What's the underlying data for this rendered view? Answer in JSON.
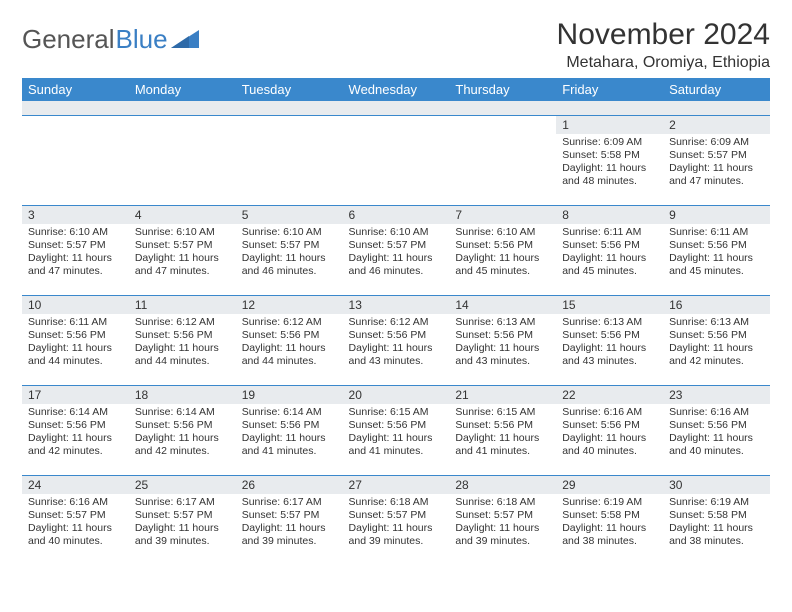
{
  "logo": {
    "text1": "General",
    "text2": "Blue"
  },
  "title": "November 2024",
  "location": "Metahara, Oromiya, Ethiopia",
  "columns": [
    "Sunday",
    "Monday",
    "Tuesday",
    "Wednesday",
    "Thursday",
    "Friday",
    "Saturday"
  ],
  "colors": {
    "header_bg": "#3a88cc",
    "header_fg": "#ffffff",
    "daynum_bg": "#e8ebee",
    "rule": "#3a88cc",
    "text": "#333333",
    "logo_blue": "#3a7fc4"
  },
  "weeks": [
    [
      {
        "n": "",
        "lines": []
      },
      {
        "n": "",
        "lines": []
      },
      {
        "n": "",
        "lines": []
      },
      {
        "n": "",
        "lines": []
      },
      {
        "n": "",
        "lines": []
      },
      {
        "n": "1",
        "lines": [
          "Sunrise: 6:09 AM",
          "Sunset: 5:58 PM",
          "Daylight: 11 hours and 48 minutes."
        ]
      },
      {
        "n": "2",
        "lines": [
          "Sunrise: 6:09 AM",
          "Sunset: 5:57 PM",
          "Daylight: 11 hours and 47 minutes."
        ]
      }
    ],
    [
      {
        "n": "3",
        "lines": [
          "Sunrise: 6:10 AM",
          "Sunset: 5:57 PM",
          "Daylight: 11 hours and 47 minutes."
        ]
      },
      {
        "n": "4",
        "lines": [
          "Sunrise: 6:10 AM",
          "Sunset: 5:57 PM",
          "Daylight: 11 hours and 47 minutes."
        ]
      },
      {
        "n": "5",
        "lines": [
          "Sunrise: 6:10 AM",
          "Sunset: 5:57 PM",
          "Daylight: 11 hours and 46 minutes."
        ]
      },
      {
        "n": "6",
        "lines": [
          "Sunrise: 6:10 AM",
          "Sunset: 5:57 PM",
          "Daylight: 11 hours and 46 minutes."
        ]
      },
      {
        "n": "7",
        "lines": [
          "Sunrise: 6:10 AM",
          "Sunset: 5:56 PM",
          "Daylight: 11 hours and 45 minutes."
        ]
      },
      {
        "n": "8",
        "lines": [
          "Sunrise: 6:11 AM",
          "Sunset: 5:56 PM",
          "Daylight: 11 hours and 45 minutes."
        ]
      },
      {
        "n": "9",
        "lines": [
          "Sunrise: 6:11 AM",
          "Sunset: 5:56 PM",
          "Daylight: 11 hours and 45 minutes."
        ]
      }
    ],
    [
      {
        "n": "10",
        "lines": [
          "Sunrise: 6:11 AM",
          "Sunset: 5:56 PM",
          "Daylight: 11 hours and 44 minutes."
        ]
      },
      {
        "n": "11",
        "lines": [
          "Sunrise: 6:12 AM",
          "Sunset: 5:56 PM",
          "Daylight: 11 hours and 44 minutes."
        ]
      },
      {
        "n": "12",
        "lines": [
          "Sunrise: 6:12 AM",
          "Sunset: 5:56 PM",
          "Daylight: 11 hours and 44 minutes."
        ]
      },
      {
        "n": "13",
        "lines": [
          "Sunrise: 6:12 AM",
          "Sunset: 5:56 PM",
          "Daylight: 11 hours and 43 minutes."
        ]
      },
      {
        "n": "14",
        "lines": [
          "Sunrise: 6:13 AM",
          "Sunset: 5:56 PM",
          "Daylight: 11 hours and 43 minutes."
        ]
      },
      {
        "n": "15",
        "lines": [
          "Sunrise: 6:13 AM",
          "Sunset: 5:56 PM",
          "Daylight: 11 hours and 43 minutes."
        ]
      },
      {
        "n": "16",
        "lines": [
          "Sunrise: 6:13 AM",
          "Sunset: 5:56 PM",
          "Daylight: 11 hours and 42 minutes."
        ]
      }
    ],
    [
      {
        "n": "17",
        "lines": [
          "Sunrise: 6:14 AM",
          "Sunset: 5:56 PM",
          "Daylight: 11 hours and 42 minutes."
        ]
      },
      {
        "n": "18",
        "lines": [
          "Sunrise: 6:14 AM",
          "Sunset: 5:56 PM",
          "Daylight: 11 hours and 42 minutes."
        ]
      },
      {
        "n": "19",
        "lines": [
          "Sunrise: 6:14 AM",
          "Sunset: 5:56 PM",
          "Daylight: 11 hours and 41 minutes."
        ]
      },
      {
        "n": "20",
        "lines": [
          "Sunrise: 6:15 AM",
          "Sunset: 5:56 PM",
          "Daylight: 11 hours and 41 minutes."
        ]
      },
      {
        "n": "21",
        "lines": [
          "Sunrise: 6:15 AM",
          "Sunset: 5:56 PM",
          "Daylight: 11 hours and 41 minutes."
        ]
      },
      {
        "n": "22",
        "lines": [
          "Sunrise: 6:16 AM",
          "Sunset: 5:56 PM",
          "Daylight: 11 hours and 40 minutes."
        ]
      },
      {
        "n": "23",
        "lines": [
          "Sunrise: 6:16 AM",
          "Sunset: 5:56 PM",
          "Daylight: 11 hours and 40 minutes."
        ]
      }
    ],
    [
      {
        "n": "24",
        "lines": [
          "Sunrise: 6:16 AM",
          "Sunset: 5:57 PM",
          "Daylight: 11 hours and 40 minutes."
        ]
      },
      {
        "n": "25",
        "lines": [
          "Sunrise: 6:17 AM",
          "Sunset: 5:57 PM",
          "Daylight: 11 hours and 39 minutes."
        ]
      },
      {
        "n": "26",
        "lines": [
          "Sunrise: 6:17 AM",
          "Sunset: 5:57 PM",
          "Daylight: 11 hours and 39 minutes."
        ]
      },
      {
        "n": "27",
        "lines": [
          "Sunrise: 6:18 AM",
          "Sunset: 5:57 PM",
          "Daylight: 11 hours and 39 minutes."
        ]
      },
      {
        "n": "28",
        "lines": [
          "Sunrise: 6:18 AM",
          "Sunset: 5:57 PM",
          "Daylight: 11 hours and 39 minutes."
        ]
      },
      {
        "n": "29",
        "lines": [
          "Sunrise: 6:19 AM",
          "Sunset: 5:58 PM",
          "Daylight: 11 hours and 38 minutes."
        ]
      },
      {
        "n": "30",
        "lines": [
          "Sunrise: 6:19 AM",
          "Sunset: 5:58 PM",
          "Daylight: 11 hours and 38 minutes."
        ]
      }
    ]
  ]
}
